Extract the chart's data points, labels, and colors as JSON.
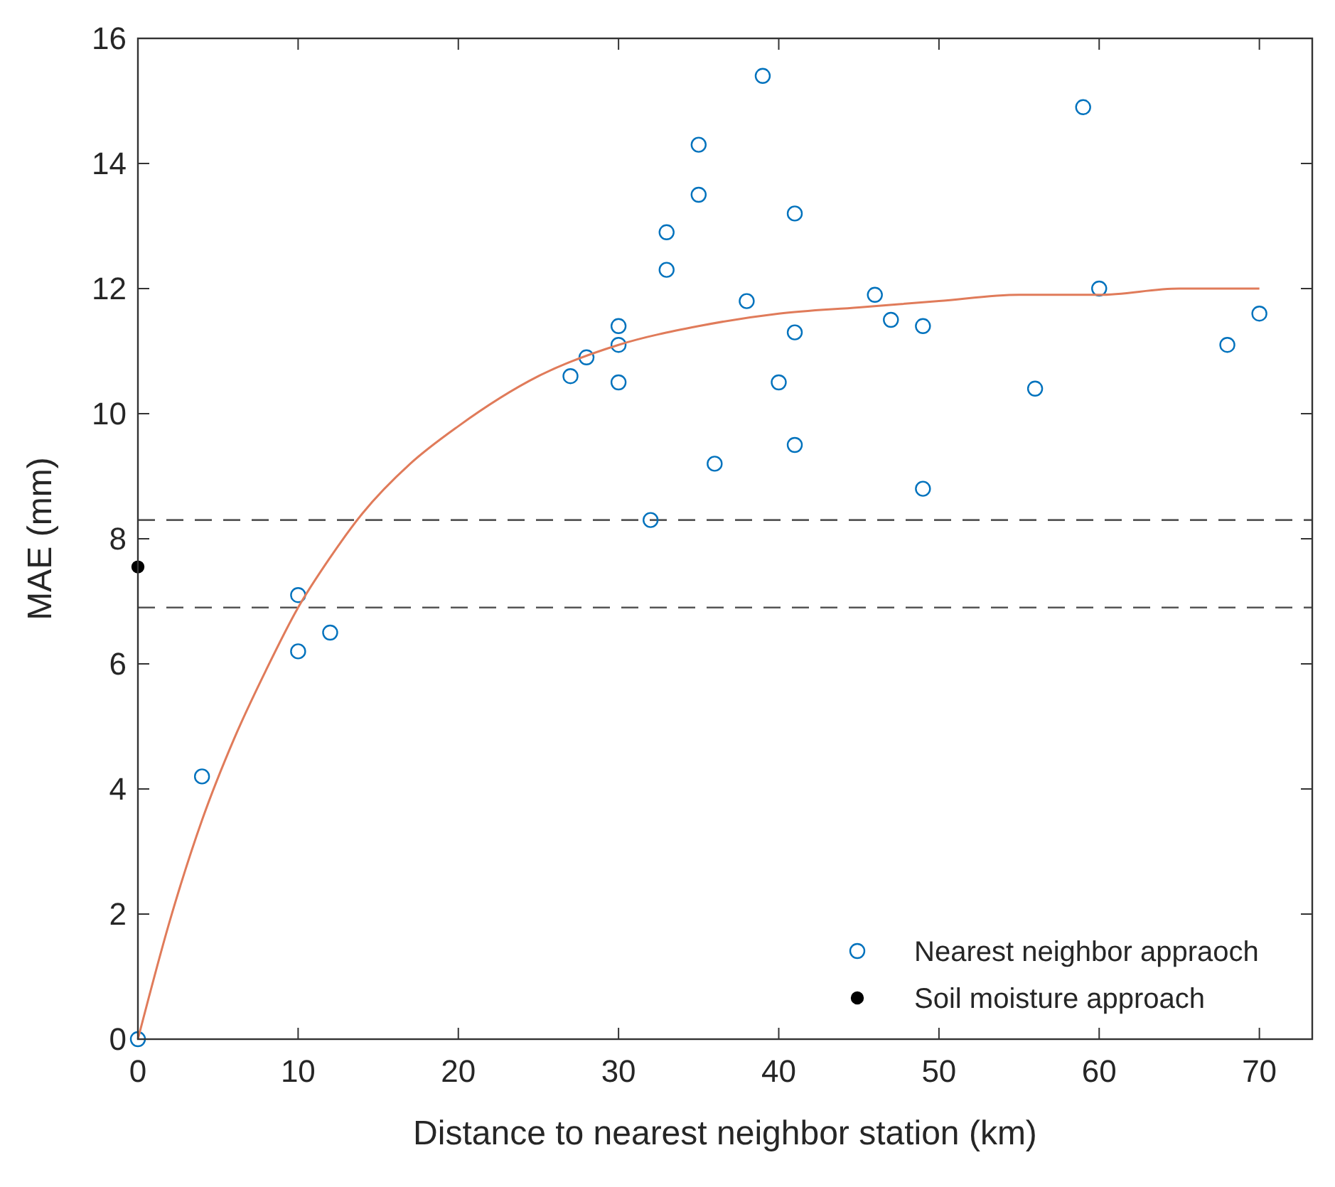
{
  "chart_data": {
    "type": "scatter",
    "xlabel": "Distance to nearest neighbor station (km)",
    "ylabel": "MAE (mm)",
    "xlim": [
      0,
      73.3
    ],
    "xticks": [
      0,
      10,
      20,
      30,
      40,
      50,
      60,
      70
    ],
    "ylim": [
      0,
      16
    ],
    "yticks": [
      0,
      2,
      4,
      6,
      8,
      10,
      12,
      14,
      16
    ],
    "grid": false,
    "legend": "bottom right",
    "series": [
      {
        "name": "Nearest neighbor appraoch",
        "color": "#0072bd",
        "marker": "circle",
        "x": [
          0,
          4,
          10,
          10,
          12,
          27,
          28,
          30,
          30,
          30,
          32,
          33,
          33,
          35,
          35,
          36,
          38,
          39,
          40,
          41,
          41,
          41,
          46,
          47,
          49,
          49,
          56,
          59,
          60,
          68,
          70
        ],
        "values": [
          0,
          4.2,
          7.1,
          6.2,
          6.5,
          10.6,
          10.9,
          11.4,
          11.1,
          10.5,
          8.3,
          12.9,
          12.3,
          14.3,
          13.5,
          9.2,
          11.8,
          15.4,
          10.5,
          13.2,
          11.3,
          9.5,
          11.9,
          11.5,
          11.4,
          8.8,
          10.4,
          14.9,
          12.0,
          11.1,
          11.6
        ]
      },
      {
        "name": "Soil moisture approach",
        "color": "#000000",
        "marker": "circle",
        "x": [
          0
        ],
        "values": [
          7.55
        ]
      },
      {
        "type": "line",
        "color": "#e07b5a",
        "marker": "none",
        "line_style": "solid",
        "x": [
          0,
          2,
          4,
          6,
          8,
          10,
          12,
          14,
          17,
          20,
          25,
          30,
          35,
          40,
          45,
          50,
          55,
          60,
          65,
          70
        ],
        "values": [
          0,
          1.9,
          3.5,
          4.8,
          5.9,
          6.9,
          7.7,
          8.4,
          9.2,
          9.8,
          10.6,
          11.1,
          11.4,
          11.6,
          11.7,
          11.8,
          11.9,
          11.9,
          12.0,
          12.0
        ]
      }
    ],
    "ref_lines": [
      {
        "axis": "y",
        "value": 8.3,
        "color": "#555555",
        "line_style": "dashed"
      },
      {
        "axis": "y",
        "value": 6.9,
        "color": "#555555",
        "line_style": "dashed"
      }
    ]
  }
}
